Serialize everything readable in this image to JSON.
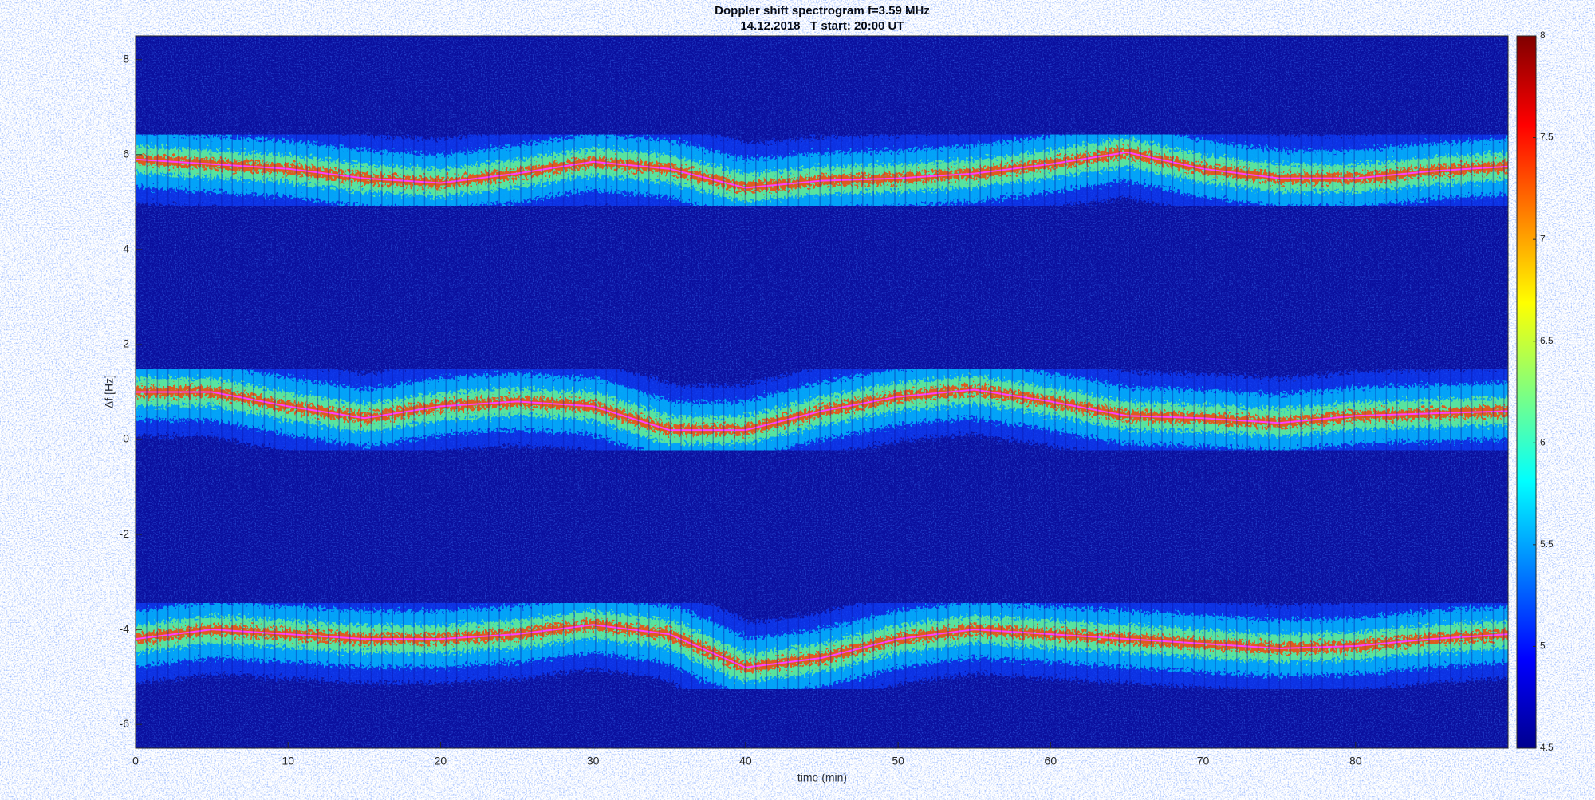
{
  "chart_data": {
    "type": "spectrogram",
    "title": "Doppler shift spectrogram f=3.59 MHz",
    "subtitle": "14.12.2018   T start: 20:00 UT",
    "xlabel": "time (min)",
    "ylabel": "Δf [Hz]",
    "colormap": "jet",
    "x": [
      0,
      5,
      10,
      15,
      20,
      25,
      30,
      35,
      40,
      45,
      50,
      55,
      60,
      65,
      70,
      75,
      80,
      85,
      90
    ],
    "series": [
      {
        "values": [
          5.9,
          5.8,
          5.7,
          5.5,
          5.4,
          5.6,
          5.85,
          5.7,
          5.3,
          5.45,
          5.5,
          5.6,
          5.8,
          6.05,
          5.7,
          5.5,
          5.5,
          5.65,
          5.75
        ]
      },
      {
        "values": [
          1.0,
          1.0,
          0.7,
          0.45,
          0.7,
          0.8,
          0.7,
          0.2,
          0.2,
          0.6,
          0.9,
          1.05,
          0.8,
          0.5,
          0.45,
          0.35,
          0.5,
          0.55,
          0.6
        ]
      },
      {
        "values": [
          -4.2,
          -4.0,
          -4.1,
          -4.2,
          -4.2,
          -4.1,
          -3.9,
          -4.1,
          -4.8,
          -4.6,
          -4.2,
          -4.0,
          -4.1,
          -4.2,
          -4.3,
          -4.4,
          -4.35,
          -4.2,
          -4.1
        ]
      }
    ],
    "xlim": [
      0,
      90
    ],
    "xticks": [
      0,
      10,
      20,
      30,
      40,
      50,
      60,
      70,
      80
    ],
    "ylim": [
      -6.5,
      8.5
    ],
    "yticks": [
      -6,
      -4,
      -2,
      0,
      2,
      4,
      6,
      8
    ],
    "clim": [
      4.5,
      8
    ],
    "cticks": [
      4.5,
      5,
      5.5,
      6,
      6.5,
      7,
      7.5,
      8
    ]
  }
}
